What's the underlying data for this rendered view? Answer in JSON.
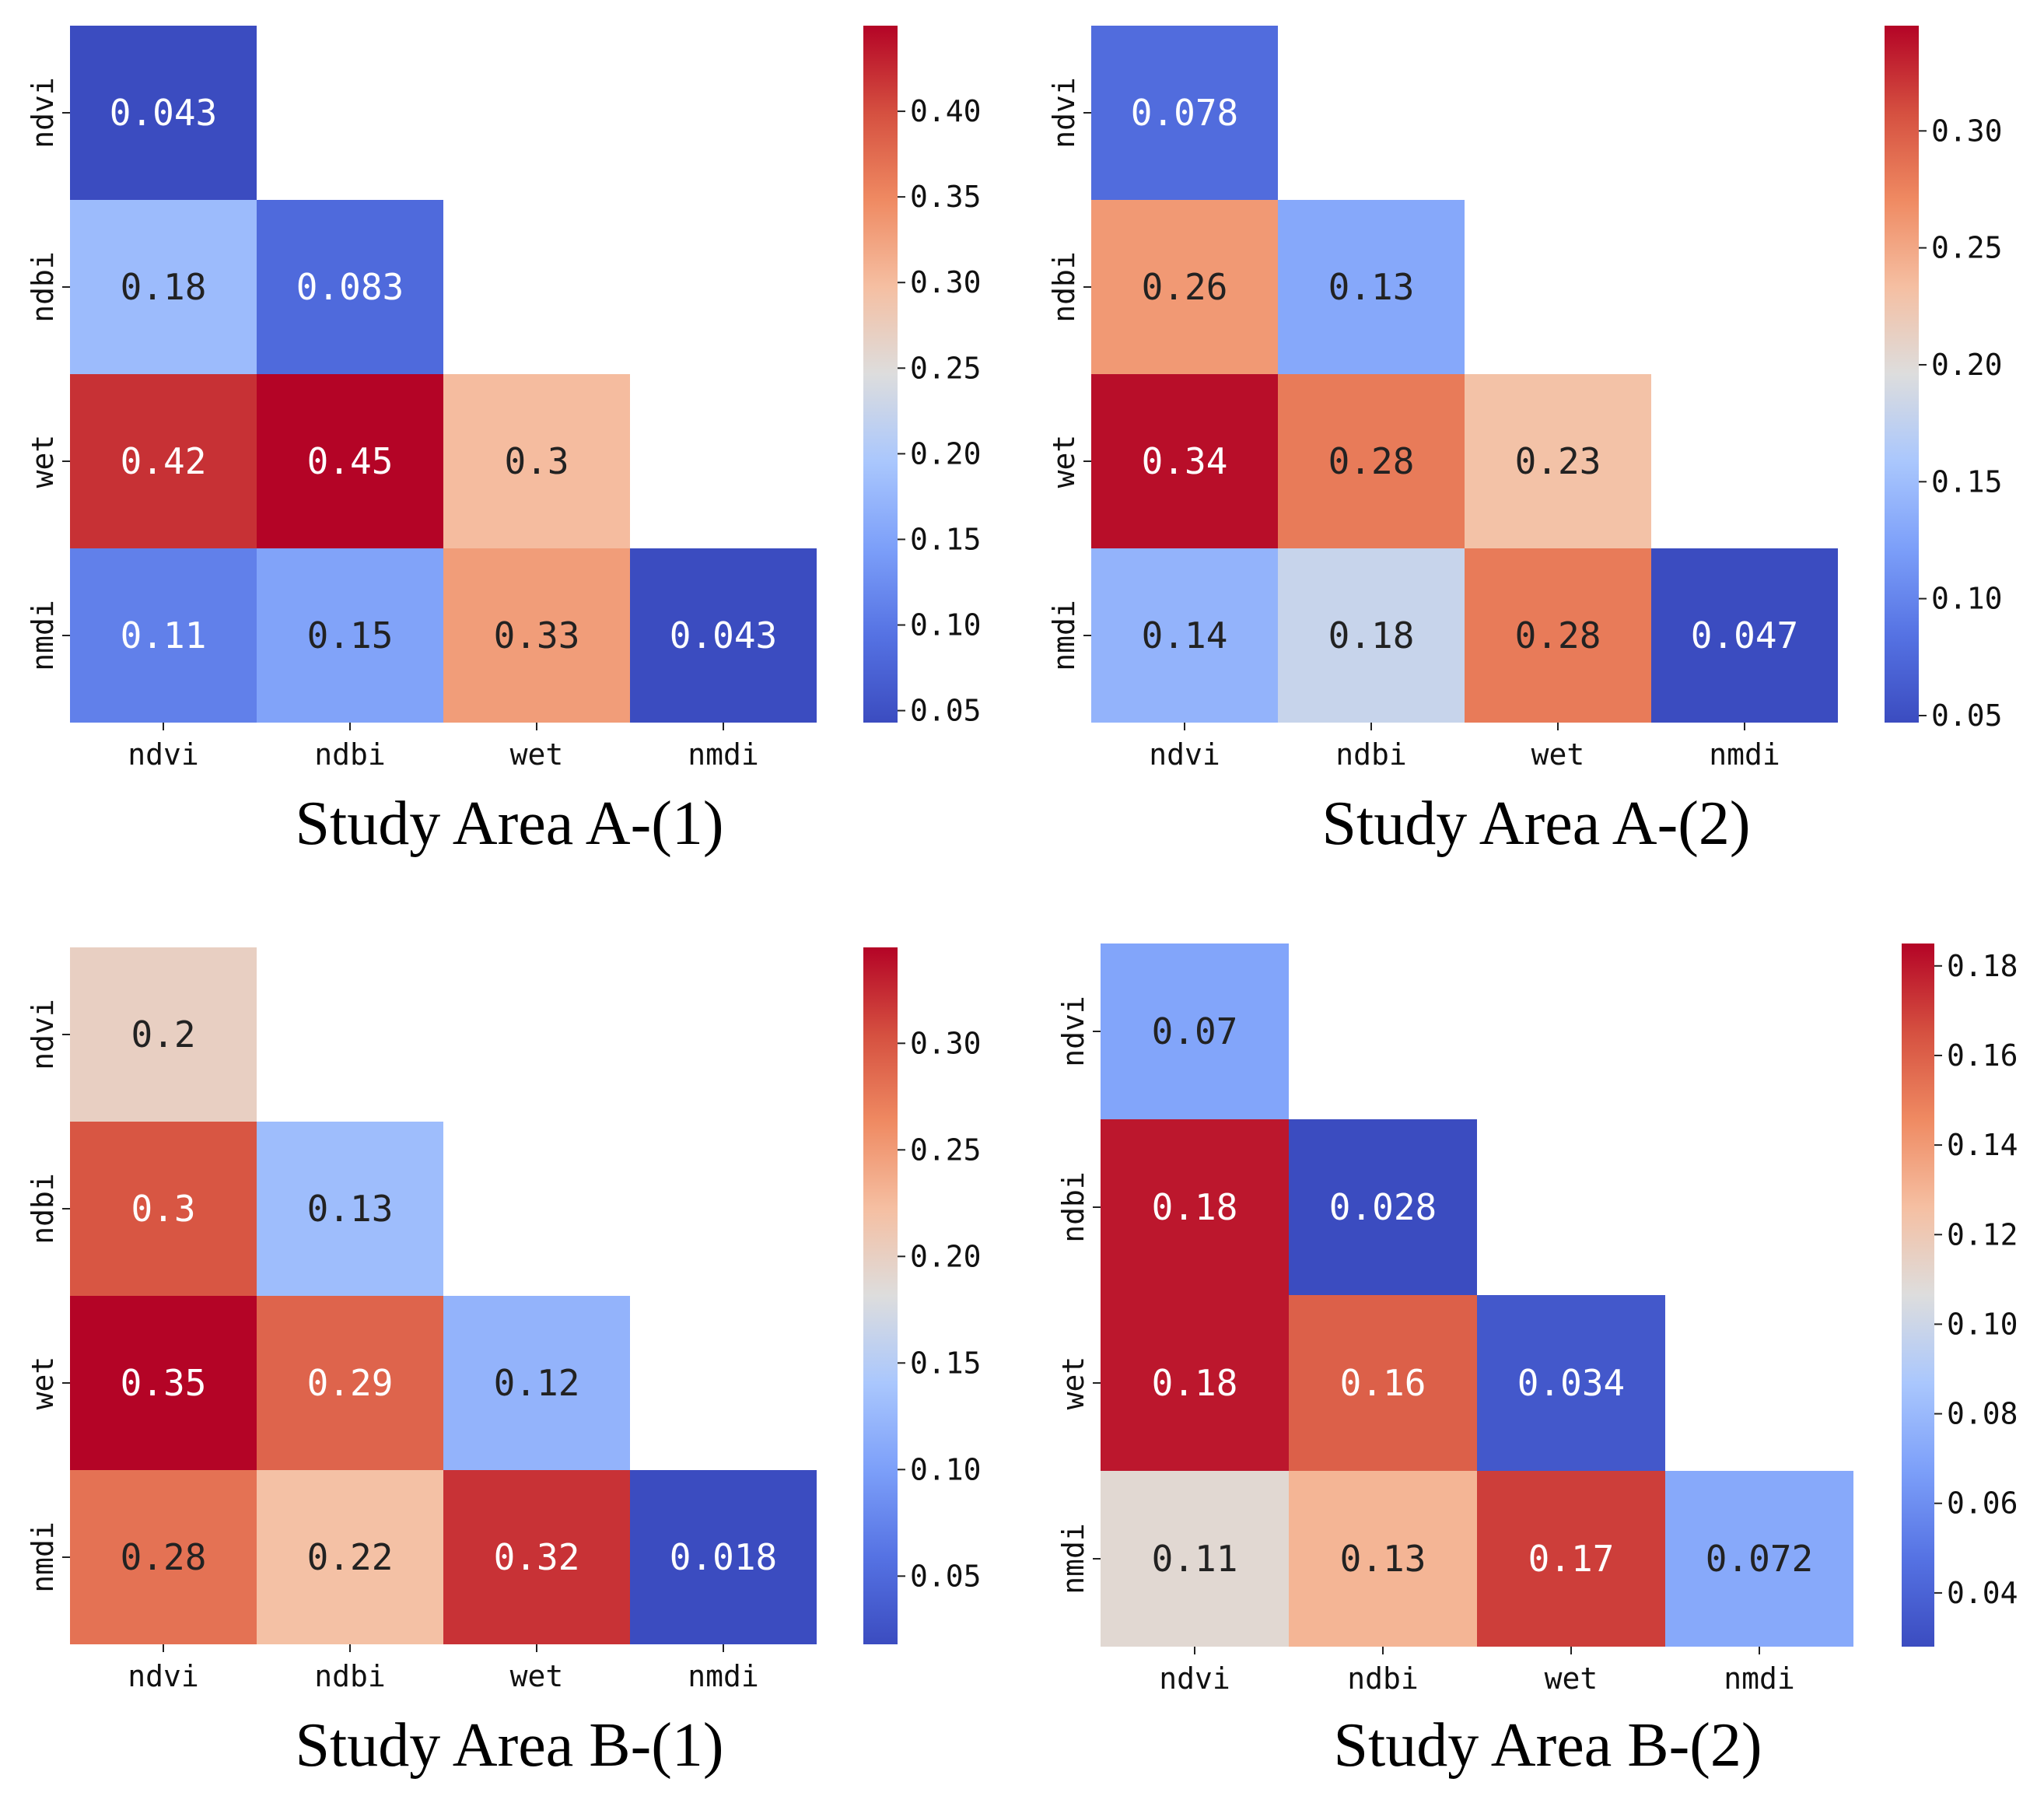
{
  "colormap": {
    "name": "coolwarm",
    "low": "#3b4cc0",
    "mid": "#dddddd",
    "high": "#b40426"
  },
  "chart_data": [
    {
      "type": "heatmap",
      "title": "Study Area A-(1)",
      "xlabels": [
        "ndvi",
        "ndbi",
        "wet",
        "nmdi"
      ],
      "ylabels": [
        "ndvi",
        "ndbi",
        "wet",
        "nmdi"
      ],
      "mask": "upper-triangle",
      "values": [
        [
          0.043,
          null,
          null,
          null
        ],
        [
          0.18,
          0.083,
          null,
          null
        ],
        [
          0.42,
          0.45,
          0.3,
          null
        ],
        [
          0.11,
          0.15,
          0.33,
          0.043
        ]
      ],
      "value_labels": [
        [
          "0.043",
          "",
          "",
          ""
        ],
        [
          "0.18",
          "0.083",
          "",
          ""
        ],
        [
          "0.42",
          "0.45",
          "0.3",
          ""
        ],
        [
          "0.11",
          "0.15",
          "0.33",
          "0.043"
        ]
      ],
      "vmin": 0.043,
      "vmax": 0.45,
      "colorbar_ticks": [
        0.05,
        0.1,
        0.15,
        0.2,
        0.25,
        0.3,
        0.35,
        0.4
      ],
      "colorbar_tick_labels": [
        "0.05",
        "0.10",
        "0.15",
        "0.20",
        "0.25",
        "0.30",
        "0.35",
        "0.40"
      ]
    },
    {
      "type": "heatmap",
      "title": "Study Area A-(2)",
      "xlabels": [
        "ndvi",
        "ndbi",
        "wet",
        "nmdi"
      ],
      "ylabels": [
        "ndvi",
        "ndbi",
        "wet",
        "nmdi"
      ],
      "mask": "upper-triangle",
      "values": [
        [
          0.078,
          null,
          null,
          null
        ],
        [
          0.26,
          0.13,
          null,
          null
        ],
        [
          0.34,
          0.28,
          0.23,
          null
        ],
        [
          0.14,
          0.18,
          0.28,
          0.047
        ]
      ],
      "value_labels": [
        [
          "0.078",
          "",
          "",
          ""
        ],
        [
          "0.26",
          "0.13",
          "",
          ""
        ],
        [
          "0.34",
          "0.28",
          "0.23",
          ""
        ],
        [
          "0.14",
          "0.18",
          "0.28",
          "0.047"
        ]
      ],
      "vmin": 0.047,
      "vmax": 0.345,
      "colorbar_ticks": [
        0.05,
        0.1,
        0.15,
        0.2,
        0.25,
        0.3
      ],
      "colorbar_tick_labels": [
        "0.05",
        "0.10",
        "0.15",
        "0.20",
        "0.25",
        "0.30"
      ]
    },
    {
      "type": "heatmap",
      "title": "Study Area B-(1)",
      "xlabels": [
        "ndvi",
        "ndbi",
        "wet",
        "nmdi"
      ],
      "ylabels": [
        "ndvi",
        "ndbi",
        "wet",
        "nmdi"
      ],
      "mask": "upper-triangle",
      "values": [
        [
          0.2,
          null,
          null,
          null
        ],
        [
          0.3,
          0.13,
          null,
          null
        ],
        [
          0.35,
          0.29,
          0.12,
          null
        ],
        [
          0.28,
          0.22,
          0.32,
          0.018
        ]
      ],
      "value_labels": [
        [
          "0.2",
          "",
          "",
          ""
        ],
        [
          "0.3",
          "0.13",
          "",
          ""
        ],
        [
          "0.35",
          "0.29",
          "0.12",
          ""
        ],
        [
          "0.28",
          "0.22",
          "0.32",
          "0.018"
        ]
      ],
      "vmin": 0.018,
      "vmax": 0.345,
      "colorbar_ticks": [
        0.05,
        0.1,
        0.15,
        0.2,
        0.25,
        0.3
      ],
      "colorbar_tick_labels": [
        "0.05",
        "0.10",
        "0.15",
        "0.20",
        "0.25",
        "0.30"
      ]
    },
    {
      "type": "heatmap",
      "title": "Study Area B-(2)",
      "xlabels": [
        "ndvi",
        "ndbi",
        "wet",
        "nmdi"
      ],
      "ylabels": [
        "ndvi",
        "ndbi",
        "wet",
        "nmdi"
      ],
      "mask": "upper-triangle",
      "values": [
        [
          0.07,
          null,
          null,
          null
        ],
        [
          0.18,
          0.028,
          null,
          null
        ],
        [
          0.18,
          0.16,
          0.034,
          null
        ],
        [
          0.11,
          0.13,
          0.17,
          0.072
        ]
      ],
      "value_labels": [
        [
          "0.07",
          "",
          "",
          ""
        ],
        [
          "0.18",
          "0.028",
          "",
          ""
        ],
        [
          "0.18",
          "0.16",
          "0.034",
          ""
        ],
        [
          "0.11",
          "0.13",
          "0.17",
          "0.072"
        ]
      ],
      "vmin": 0.028,
      "vmax": 0.185,
      "colorbar_ticks": [
        0.04,
        0.06,
        0.08,
        0.1,
        0.12,
        0.14,
        0.16,
        0.18
      ],
      "colorbar_tick_labels": [
        "0.04",
        "0.06",
        "0.08",
        "0.10",
        "0.12",
        "0.14",
        "0.16",
        "0.18"
      ]
    }
  ]
}
